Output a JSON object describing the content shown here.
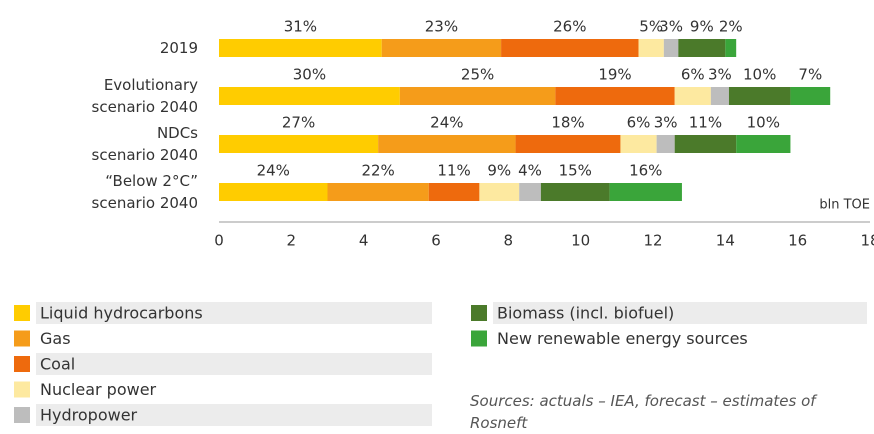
{
  "chart_data": {
    "type": "bar",
    "orientation": "horizontal",
    "stacked": true,
    "categories": [
      "2019",
      "Evolutionary\nscenario 2040",
      "NDCs\nscenario 2040",
      "“Below 2°C”\nscenario 2040"
    ],
    "series": [
      {
        "name": "Liquid hydrocarbons",
        "color": "#ffcc00",
        "values": [
          4.5,
          5.0,
          4.4,
          3.0
        ],
        "labels": [
          "31%",
          "30%",
          "27%",
          "24%"
        ]
      },
      {
        "name": "Gas",
        "color": "#f59c1a",
        "values": [
          3.3,
          4.3,
          3.8,
          2.8
        ],
        "labels": [
          "23%",
          "25%",
          "24%",
          "22%"
        ]
      },
      {
        "name": "Coal",
        "color": "#ee6a0d",
        "values": [
          3.8,
          3.3,
          2.9,
          1.4
        ],
        "labels": [
          "26%",
          "19%",
          "18%",
          "11%"
        ]
      },
      {
        "name": "Nuclear power",
        "color": "#fde9a0",
        "values": [
          0.7,
          1.0,
          1.0,
          1.1
        ],
        "labels": [
          "5%",
          "6%",
          "6%",
          "9%"
        ]
      },
      {
        "name": "Hydropower",
        "color": "#bdbdbd",
        "values": [
          0.4,
          0.5,
          0.5,
          0.6
        ],
        "labels": [
          "3%",
          "3%",
          "3%",
          "4%"
        ]
      },
      {
        "name": "Biomass (incl. biofuel)",
        "color": "#4b7a2a",
        "values": [
          1.3,
          1.7,
          1.7,
          1.9
        ],
        "labels": [
          "9%",
          "10%",
          "11%",
          "15%"
        ]
      },
      {
        "name": "New renewable energy sources",
        "color": "#3aa53a",
        "values": [
          0.3,
          1.1,
          1.5,
          2.0
        ],
        "labels": [
          "2%",
          "7%",
          "10%",
          "16%"
        ]
      }
    ],
    "x_label": "bln TOE",
    "xlim": [
      0,
      18
    ],
    "xticks": [
      0,
      2,
      4,
      6,
      8,
      10,
      12,
      14,
      16,
      18
    ],
    "legend": "bottom",
    "source": "Sources: actuals – IEA, forecast – estimates of Rosneft"
  }
}
